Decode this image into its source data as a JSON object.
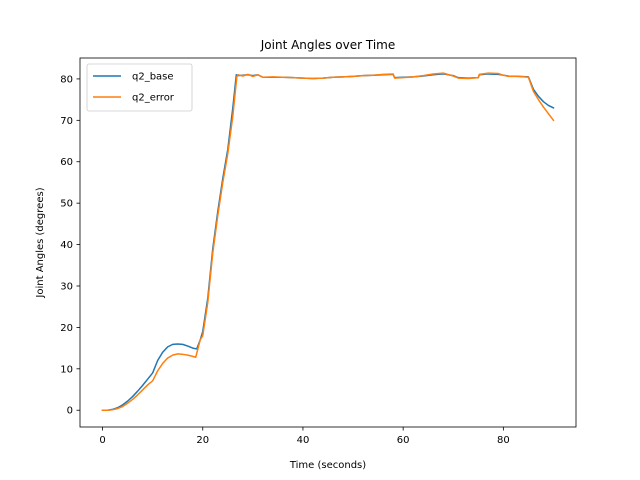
{
  "chart_data": {
    "type": "line",
    "title": "Joint Angles over Time",
    "xlabel": "Time (seconds)",
    "ylabel": "Joint Angles (degrees)",
    "xlim": [
      -4.5,
      94.5
    ],
    "ylim": [
      -4.05,
      85.05
    ],
    "xticks": [
      0,
      20,
      40,
      60,
      80
    ],
    "yticks": [
      0,
      10,
      20,
      30,
      40,
      50,
      60,
      70,
      80
    ],
    "grid": false,
    "legend_position": "upper-left",
    "series": [
      {
        "name": "q2_base",
        "color": "#1f77b4",
        "points": [
          [
            0,
            0
          ],
          [
            1,
            0
          ],
          [
            2,
            0.2
          ],
          [
            3,
            0.6
          ],
          [
            4,
            1.3
          ],
          [
            5,
            2.2
          ],
          [
            6,
            3.3
          ],
          [
            7,
            4.6
          ],
          [
            8,
            6.0
          ],
          [
            9,
            7.5
          ],
          [
            10,
            9.0
          ],
          [
            11,
            12.0
          ],
          [
            12,
            14.0
          ],
          [
            13,
            15.3
          ],
          [
            14,
            15.9
          ],
          [
            15,
            16.0
          ],
          [
            16,
            15.9
          ],
          [
            17,
            15.5
          ],
          [
            18,
            15.0
          ],
          [
            18.8,
            14.8
          ],
          [
            19.5,
            17.0
          ],
          [
            20,
            19.0
          ],
          [
            21,
            27.0
          ],
          [
            22,
            39.0
          ],
          [
            23,
            48.0
          ],
          [
            24,
            56.0
          ],
          [
            25,
            63.0
          ],
          [
            26,
            73.0
          ],
          [
            26.7,
            81.0
          ],
          [
            27,
            80.8
          ],
          [
            28,
            80.9
          ],
          [
            29,
            81.0
          ],
          [
            30,
            80.8
          ],
          [
            31,
            81.0
          ],
          [
            32,
            80.4
          ],
          [
            34,
            80.4
          ],
          [
            36,
            80.4
          ],
          [
            38,
            80.3
          ],
          [
            40,
            80.2
          ],
          [
            42,
            80.1
          ],
          [
            44,
            80.2
          ],
          [
            46,
            80.4
          ],
          [
            48,
            80.5
          ],
          [
            50,
            80.6
          ],
          [
            52,
            80.8
          ],
          [
            54,
            80.9
          ],
          [
            56,
            81.0
          ],
          [
            58,
            81.1
          ],
          [
            58.3,
            80.3
          ],
          [
            60,
            80.4
          ],
          [
            62,
            80.5
          ],
          [
            64,
            80.7
          ],
          [
            66,
            81.0
          ],
          [
            68,
            81.2
          ],
          [
            70,
            80.8
          ],
          [
            71,
            80.3
          ],
          [
            73,
            80.2
          ],
          [
            75,
            80.3
          ],
          [
            75.2,
            81.0
          ],
          [
            77,
            81.2
          ],
          [
            79,
            81.1
          ],
          [
            80,
            80.9
          ],
          [
            81,
            80.7
          ],
          [
            83,
            80.6
          ],
          [
            85,
            80.5
          ],
          [
            86,
            77.5
          ],
          [
            87,
            75.8
          ],
          [
            88,
            74.5
          ],
          [
            89,
            73.6
          ],
          [
            90,
            73.0
          ]
        ]
      },
      {
        "name": "q2_error",
        "color": "#ff7f0e",
        "points": [
          [
            0,
            0
          ],
          [
            1,
            0
          ],
          [
            2,
            0.1
          ],
          [
            3,
            0.4
          ],
          [
            4,
            0.9
          ],
          [
            5,
            1.7
          ],
          [
            6,
            2.6
          ],
          [
            7,
            3.7
          ],
          [
            8,
            4.9
          ],
          [
            9,
            6.1
          ],
          [
            10,
            7.1
          ],
          [
            11,
            9.5
          ],
          [
            12,
            11.3
          ],
          [
            13,
            12.6
          ],
          [
            14,
            13.3
          ],
          [
            15,
            13.6
          ],
          [
            16,
            13.5
          ],
          [
            17,
            13.3
          ],
          [
            18,
            13.0
          ],
          [
            18.6,
            12.8
          ],
          [
            19.5,
            17.0
          ],
          [
            20,
            18.0
          ],
          [
            21,
            26.0
          ],
          [
            22,
            38.0
          ],
          [
            23,
            47.0
          ],
          [
            24,
            55.0
          ],
          [
            25,
            62.0
          ],
          [
            26,
            71.0
          ],
          [
            26.8,
            80.5
          ],
          [
            27,
            81.0
          ],
          [
            28,
            80.7
          ],
          [
            29,
            81.1
          ],
          [
            30,
            80.6
          ],
          [
            31,
            81.0
          ],
          [
            32,
            80.4
          ],
          [
            34,
            80.5
          ],
          [
            36,
            80.4
          ],
          [
            38,
            80.3
          ],
          [
            40,
            80.2
          ],
          [
            42,
            80.1
          ],
          [
            44,
            80.2
          ],
          [
            46,
            80.4
          ],
          [
            48,
            80.5
          ],
          [
            50,
            80.6
          ],
          [
            52,
            80.8
          ],
          [
            54,
            80.9
          ],
          [
            56,
            81.1
          ],
          [
            58,
            81.2
          ],
          [
            58.3,
            80.2
          ],
          [
            60,
            80.3
          ],
          [
            62,
            80.5
          ],
          [
            64,
            80.8
          ],
          [
            66,
            81.2
          ],
          [
            68,
            81.4
          ],
          [
            70,
            80.7
          ],
          [
            71,
            80.2
          ],
          [
            73,
            80.1
          ],
          [
            75,
            80.3
          ],
          [
            75.2,
            81.1
          ],
          [
            77,
            81.4
          ],
          [
            79,
            81.3
          ],
          [
            80,
            80.9
          ],
          [
            81,
            80.6
          ],
          [
            83,
            80.6
          ],
          [
            85,
            80.4
          ],
          [
            86,
            77.0
          ],
          [
            87,
            75.0
          ],
          [
            88,
            73.2
          ],
          [
            89,
            71.6
          ],
          [
            90,
            70.0
          ]
        ]
      }
    ]
  }
}
